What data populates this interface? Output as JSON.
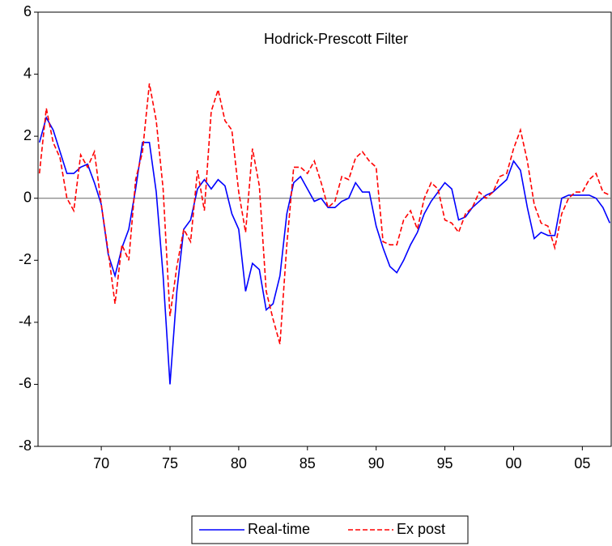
{
  "chart_data": {
    "type": "line",
    "title": "Hodrick-Prescott Filter",
    "x": [
      1965.5,
      1966,
      1966.5,
      1967,
      1967.5,
      1968,
      1968.5,
      1969,
      1969.5,
      1970,
      1970.5,
      1971,
      1971.5,
      1972,
      1972.5,
      1973,
      1973.5,
      1974,
      1974.5,
      1975,
      1975.5,
      1976,
      1976.5,
      1977,
      1977.5,
      1978,
      1978.5,
      1979,
      1979.5,
      1980,
      1980.5,
      1981,
      1981.5,
      1982,
      1982.5,
      1983,
      1983.5,
      1984,
      1984.5,
      1985,
      1985.5,
      1986,
      1986.5,
      1987,
      1987.5,
      1988,
      1988.5,
      1989,
      1989.5,
      1990,
      1990.5,
      1991,
      1991.5,
      1992,
      1992.5,
      1993,
      1993.5,
      1994,
      1994.5,
      1995,
      1995.5,
      1996,
      1996.5,
      1997,
      1997.5,
      1998,
      1998.5,
      1999,
      1999.5,
      2000,
      2000.5,
      2001,
      2001.5,
      2002,
      2002.5,
      2003,
      2003.5,
      2004,
      2004.5,
      2005,
      2005.5,
      2006,
      2006.5,
      2007
    ],
    "series": [
      {
        "name": "Real-time",
        "color": "#0000ff",
        "dash": false,
        "values": [
          1.8,
          2.6,
          2.2,
          1.5,
          0.8,
          0.8,
          1.0,
          1.1,
          0.5,
          -0.2,
          -1.8,
          -2.5,
          -1.6,
          -1.0,
          0.3,
          1.8,
          1.8,
          0.2,
          -2.5,
          -6.0,
          -3.0,
          -1.0,
          -0.7,
          0.3,
          0.6,
          0.3,
          0.6,
          0.4,
          -0.5,
          -1.0,
          -3.0,
          -2.1,
          -2.3,
          -3.6,
          -3.4,
          -2.5,
          -0.5,
          0.5,
          0.7,
          0.3,
          -0.1,
          0.0,
          -0.3,
          -0.3,
          -0.1,
          0.0,
          0.5,
          0.2,
          0.2,
          -0.9,
          -1.6,
          -2.2,
          -2.4,
          -2.0,
          -1.5,
          -1.1,
          -0.5,
          -0.1,
          0.2,
          0.5,
          0.3,
          -0.7,
          -0.6,
          -0.3,
          -0.1,
          0.1,
          0.2,
          0.4,
          0.6,
          1.2,
          0.9,
          -0.3,
          -1.3,
          -1.1,
          -1.2,
          -1.2,
          0.0,
          0.1,
          0.1,
          0.1,
          0.1,
          0.0,
          -0.3,
          -0.8
        ]
      },
      {
        "name": "Ex post",
        "color": "#ff0000",
        "dash": true,
        "values": [
          0.8,
          2.9,
          1.8,
          1.3,
          0.0,
          -0.4,
          1.4,
          1.0,
          1.5,
          -0.2,
          -1.7,
          -3.4,
          -1.5,
          -2.0,
          0.6,
          1.5,
          3.7,
          2.5,
          0.3,
          -3.8,
          -2.2,
          -1.0,
          -1.4,
          0.9,
          -0.4,
          2.8,
          3.5,
          2.5,
          2.2,
          0.2,
          -1.1,
          1.6,
          0.4,
          -3.0,
          -3.9,
          -4.7,
          -1.5,
          1.0,
          1.0,
          0.8,
          1.2,
          0.5,
          -0.3,
          -0.1,
          0.7,
          0.6,
          1.3,
          1.5,
          1.2,
          1.0,
          -1.4,
          -1.5,
          -1.5,
          -0.7,
          -0.4,
          -1.0,
          0.0,
          0.5,
          0.3,
          -0.7,
          -0.8,
          -1.1,
          -0.5,
          -0.3,
          0.2,
          0.0,
          0.2,
          0.7,
          0.8,
          1.6,
          2.2,
          1.2,
          -0.2,
          -0.8,
          -0.9,
          -1.6,
          -0.5,
          0.0,
          0.2,
          0.2,
          0.6,
          0.8,
          0.2,
          0.1
        ]
      }
    ],
    "xlim": [
      1965.4,
      2007.1
    ],
    "xticks": [
      {
        "value": 1970,
        "label": "70"
      },
      {
        "value": 1975,
        "label": "75"
      },
      {
        "value": 1980,
        "label": "80"
      },
      {
        "value": 1985,
        "label": "85"
      },
      {
        "value": 1990,
        "label": "90"
      },
      {
        "value": 1995,
        "label": "95"
      },
      {
        "value": 2000,
        "label": "00"
      },
      {
        "value": 2005,
        "label": "05"
      }
    ],
    "ylim": [
      -8,
      6
    ],
    "yticks": [
      -8,
      -6,
      -4,
      -2,
      0,
      2,
      4,
      6
    ],
    "zero_line": true,
    "legend": "bottom"
  }
}
